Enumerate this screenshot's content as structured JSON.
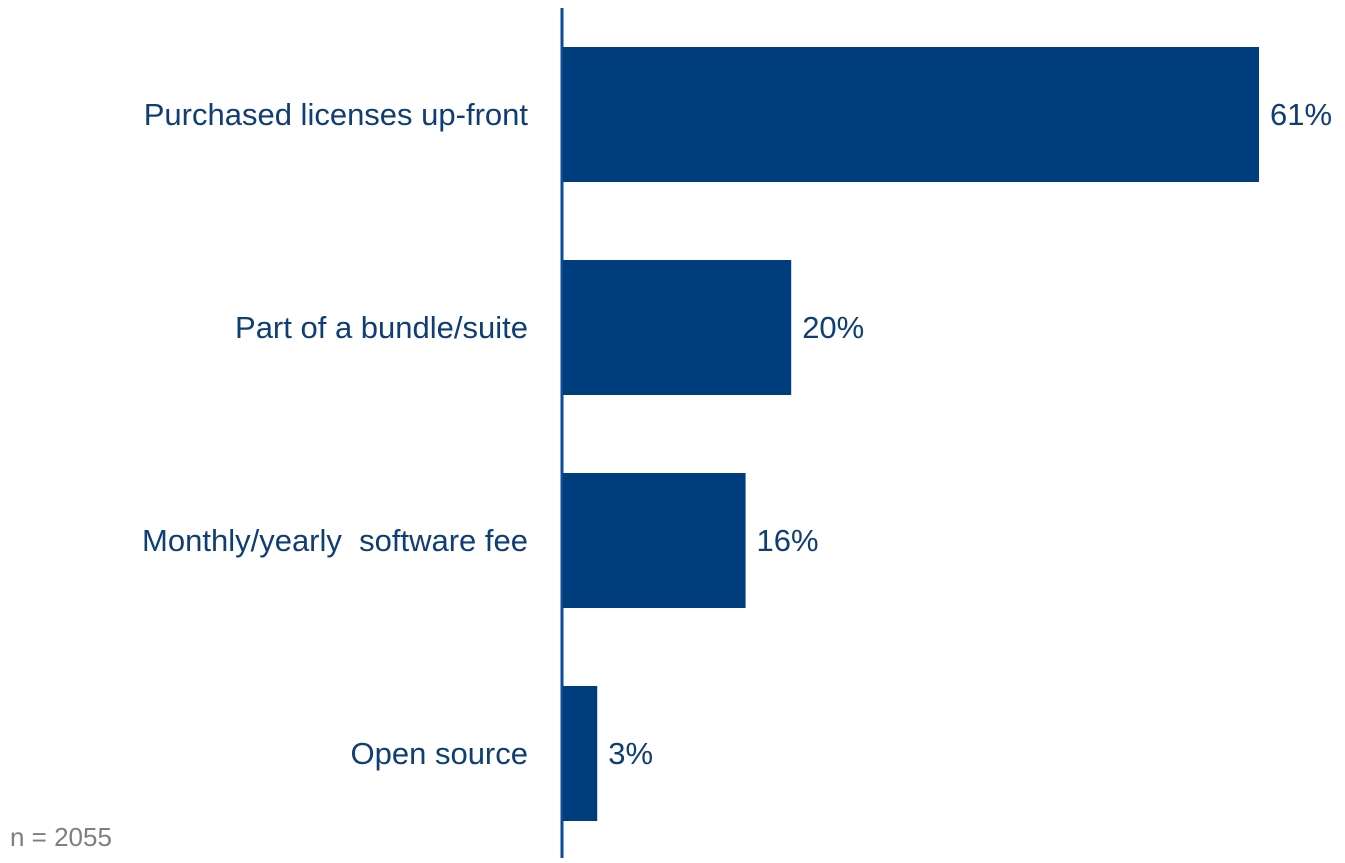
{
  "chart_data": {
    "type": "bar",
    "orientation": "horizontal",
    "categories": [
      "Purchased licenses up-front",
      "Part of a bundle/suite",
      "Monthly/yearly  software fee",
      "Open source"
    ],
    "values": [
      61,
      20,
      16,
      3
    ],
    "value_labels": [
      "61%",
      "20%",
      "16%",
      "3%"
    ],
    "unit": "%",
    "xlim": [
      0,
      61
    ],
    "grid": false,
    "legend": "none",
    "title": "",
    "xlabel": "",
    "ylabel": ""
  },
  "note": "n = 2055",
  "colors": {
    "bar": "#003D7C",
    "axis": "#0A4C9A",
    "category_text": "#0F3E74",
    "value_text": "#0F3E74",
    "note_text": "#7F7F7F"
  }
}
